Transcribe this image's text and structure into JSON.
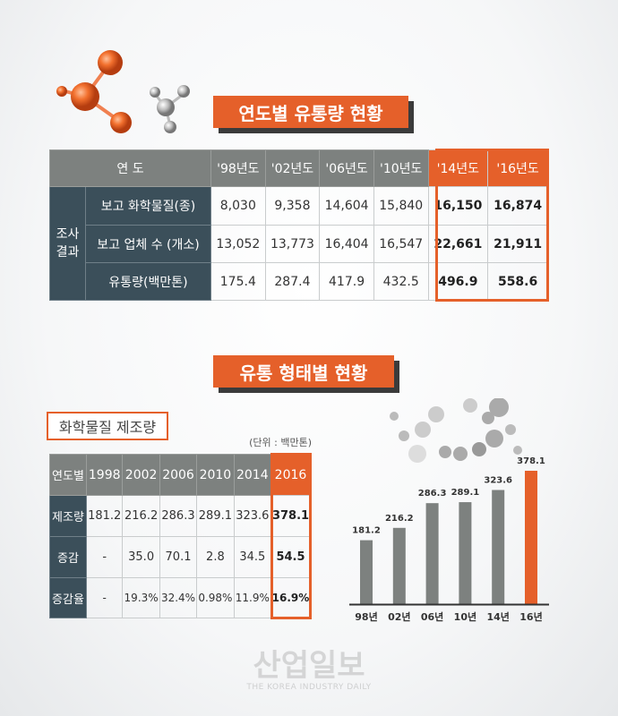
{
  "section1": {
    "title": "연도별 유통량 현황",
    "header": {
      "label": "연 도",
      "years": [
        "'98년도",
        "'02년도",
        "'06년도",
        "'10년도",
        "'14년도",
        "'16년도"
      ]
    },
    "group_label": "조사결과",
    "rows": [
      {
        "label": "보고 화학물질(종)",
        "values": [
          "8,030",
          "9,358",
          "14,604",
          "15,840",
          "16,150",
          "16,874"
        ]
      },
      {
        "label": "보고 업체 수 (개소)",
        "values": [
          "13,052",
          "13,773",
          "16,404",
          "16,547",
          "22,661",
          "21,911"
        ]
      },
      {
        "label": "유통량(백만톤)",
        "values": [
          "175.4",
          "287.4",
          "417.9",
          "432.5",
          "496.9",
          "558.6"
        ]
      }
    ]
  },
  "section2": {
    "title": "유통 형태별 현황",
    "subtitle": "화학물질 제조량",
    "unit": "(단위 : 백만톤)",
    "header": {
      "label": "연도별",
      "years": [
        "1998",
        "2002",
        "2006",
        "2010",
        "2014",
        "2016"
      ]
    },
    "rows": [
      {
        "label": "제조량",
        "values": [
          "181.2",
          "216.2",
          "286.3",
          "289.1",
          "323.6",
          "378.1"
        ]
      },
      {
        "label": "증감",
        "values": [
          "-",
          "35.0",
          "70.1",
          "2.8",
          "34.5",
          "54.5"
        ]
      },
      {
        "label": "증감율",
        "values": [
          "-",
          "19.3%",
          "32.4%",
          "0.98%",
          "11.9%",
          "16.9%"
        ]
      }
    ]
  },
  "chart_data": {
    "type": "bar",
    "categories": [
      "98년",
      "02년",
      "06년",
      "10년",
      "14년",
      "16년"
    ],
    "values": [
      181.2,
      216.2,
      286.3,
      289.1,
      323.6,
      378.1
    ],
    "labels": [
      "181.2",
      "216.2",
      "286.3",
      "289.1",
      "323.6",
      "378.1"
    ],
    "ylim": [
      0,
      378.1
    ],
    "grid": false,
    "colors": {
      "default": "#7d817f",
      "highlight": "#e5602a"
    },
    "highlight_index": 5
  },
  "watermark": {
    "text": "산업일보",
    "subtext": "THE KOREA INDUSTRY DAILY"
  }
}
